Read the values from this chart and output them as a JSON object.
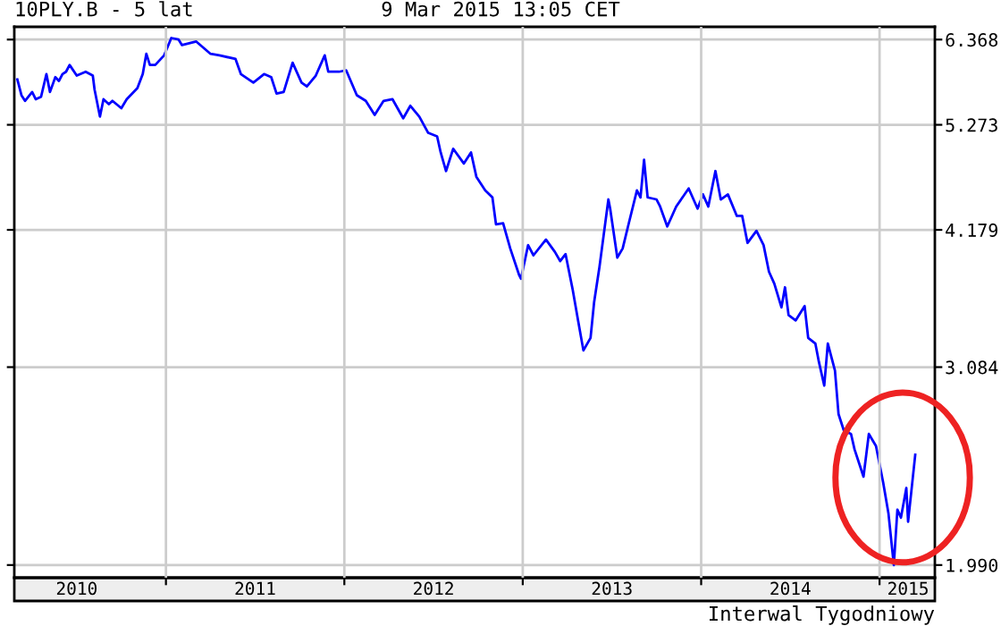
{
  "chart_data": {
    "type": "line",
    "title": "10PLY.B - 5 lat",
    "subtitle": "9 Mar 2015 13:05 CET",
    "annotations": [
      "Interwal Tygodniowy"
    ],
    "log": "y",
    "grid": true,
    "marker": "none",
    "line_style": "solid",
    "xlim": [
      2010.15,
      2015.31
    ],
    "ylim": [
      1.935,
      6.55
    ],
    "xticks": [
      {
        "value": 2011,
        "label": null
      },
      {
        "value": 2012,
        "label": null
      },
      {
        "value": 2013,
        "label": null
      },
      {
        "value": 2014,
        "label": null
      },
      {
        "value": 2015,
        "label": null
      },
      {
        "value": 2010.5,
        "label": "2010"
      },
      {
        "value": 2011.5,
        "label": "2011"
      },
      {
        "value": 2012.5,
        "label": "2012"
      },
      {
        "value": 2013.5,
        "label": "2013"
      },
      {
        "value": 2014.5,
        "label": "2014"
      },
      {
        "value": 2015.16,
        "label": "2015"
      }
    ],
    "yticks": [
      {
        "value": 1.99,
        "label": "1.990"
      },
      3.084,
      4.179,
      5.273,
      6.368
    ],
    "series": [
      {
        "color": "#0000ff",
        "x": [
          2010.167,
          2010.19,
          2010.21,
          2010.25,
          2010.27,
          2010.3,
          2010.33,
          2010.35,
          2010.38,
          2010.4,
          2010.42,
          2010.44,
          2010.46,
          2010.5,
          2010.55,
          2010.59,
          2010.6,
          2010.63,
          2010.65,
          2010.68,
          2010.7,
          2010.75,
          2010.78,
          2010.84,
          2010.87,
          2010.89,
          2010.91,
          2010.94,
          2010.99,
          2011.03,
          2011.07,
          2011.09,
          2011.17,
          2011.25,
          2011.3,
          2011.39,
          2011.42,
          2011.49,
          2011.55,
          2011.59,
          2011.62,
          2011.66,
          2011.71,
          2011.76,
          2011.79,
          2011.84,
          2011.89,
          2011.91,
          2011.97,
          2012.01,
          2012.07,
          2012.12,
          2012.17,
          2012.22,
          2012.27,
          2012.33,
          2012.37,
          2012.42,
          2012.47,
          2012.52,
          2012.54,
          2012.57,
          2012.61,
          2012.67,
          2012.71,
          2012.74,
          2012.79,
          2012.83,
          2012.85,
          2012.89,
          2012.93,
          2012.98,
          2012.99,
          2013.03,
          2013.06,
          2013.13,
          2013.18,
          2013.21,
          2013.24,
          2013.28,
          2013.31,
          2013.34,
          2013.38,
          2013.4,
          2013.43,
          2013.48,
          2013.49,
          2013.53,
          2013.56,
          2013.59,
          2013.64,
          2013.66,
          2013.68,
          2013.7,
          2013.75,
          2013.77,
          2013.81,
          2013.86,
          2013.93,
          2013.98,
          2014.01,
          2014.04,
          2014.08,
          2014.11,
          2014.15,
          2014.2,
          2014.23,
          2014.26,
          2014.31,
          2014.35,
          2014.38,
          2014.41,
          2014.45,
          2014.47,
          2014.49,
          2014.53,
          2014.58,
          2014.6,
          2014.64,
          2014.66,
          2014.69,
          2014.71,
          2014.75,
          2014.77,
          2014.8,
          2014.84,
          2014.86,
          2014.91,
          2014.94,
          2014.98,
          2015.02,
          2015.05,
          2015.08,
          2015.1,
          2015.12,
          2015.15,
          2015.16,
          2015.2
        ],
        "values": [
          5.83,
          5.63,
          5.56,
          5.67,
          5.58,
          5.61,
          5.9,
          5.67,
          5.86,
          5.81,
          5.9,
          5.93,
          6.02,
          5.88,
          5.93,
          5.88,
          5.7,
          5.37,
          5.58,
          5.52,
          5.56,
          5.47,
          5.58,
          5.72,
          5.9,
          6.17,
          6.02,
          6.02,
          6.15,
          6.39,
          6.37,
          6.29,
          6.34,
          6.17,
          6.15,
          6.1,
          5.9,
          5.79,
          5.9,
          5.86,
          5.65,
          5.67,
          6.05,
          5.79,
          5.74,
          5.88,
          6.15,
          5.93,
          5.93,
          5.95,
          5.63,
          5.56,
          5.39,
          5.56,
          5.58,
          5.35,
          5.5,
          5.37,
          5.18,
          5.14,
          4.96,
          4.76,
          5.0,
          4.84,
          4.96,
          4.7,
          4.56,
          4.49,
          4.23,
          4.24,
          4.01,
          3.78,
          3.75,
          4.04,
          3.95,
          4.09,
          3.98,
          3.9,
          3.96,
          3.66,
          3.42,
          3.2,
          3.29,
          3.56,
          3.85,
          4.47,
          4.38,
          3.93,
          4.01,
          4.21,
          4.56,
          4.49,
          4.88,
          4.49,
          4.47,
          4.4,
          4.21,
          4.4,
          4.58,
          4.38,
          4.52,
          4.4,
          4.76,
          4.47,
          4.52,
          4.31,
          4.31,
          4.06,
          4.17,
          4.04,
          3.81,
          3.71,
          3.52,
          3.68,
          3.46,
          3.42,
          3.53,
          3.29,
          3.25,
          3.12,
          2.96,
          3.25,
          3.06,
          2.78,
          2.68,
          2.66,
          2.57,
          2.42,
          2.66,
          2.59,
          2.39,
          2.23,
          1.99,
          2.25,
          2.21,
          2.36,
          2.19,
          2.54
        ]
      }
    ]
  }
}
